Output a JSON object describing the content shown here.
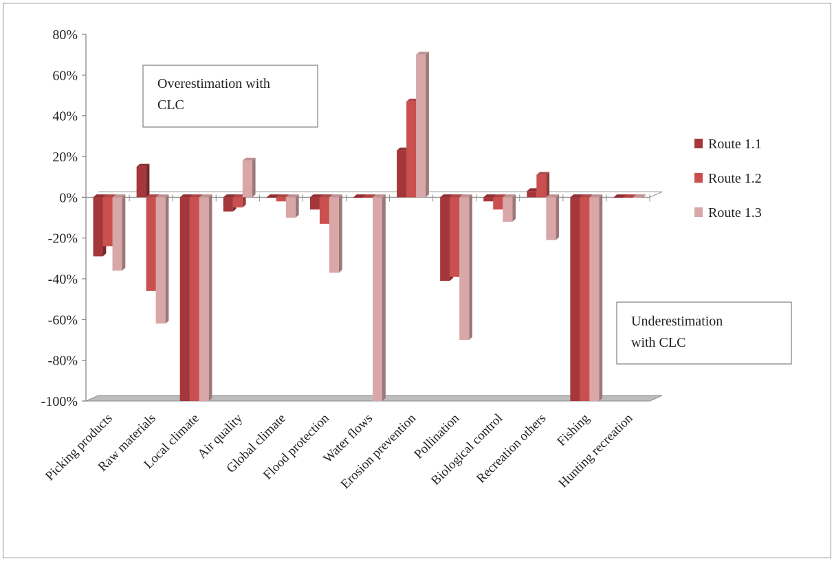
{
  "chart_data": {
    "type": "bar",
    "categories": [
      "Picking products",
      "Raw materials",
      "Local climate",
      "Air quality",
      "Global climate",
      "Flood protection",
      "Water flows",
      "Erosion prevention",
      "Pollination",
      "Biological control",
      "Recreation others",
      "Fishing",
      "Hunting recreation"
    ],
    "series": [
      {
        "name": "Route 1.1",
        "color": "#a5373b",
        "values": [
          -29,
          15,
          -100,
          -7,
          0,
          -6,
          0,
          23,
          -41,
          -2,
          3,
          -100,
          0
        ]
      },
      {
        "name": "Route 1.2",
        "color": "#c9504f",
        "values": [
          -24,
          -46,
          -100,
          -5,
          -2,
          -13,
          0,
          47,
          -39,
          -6,
          11,
          -100,
          0
        ]
      },
      {
        "name": "Route 1.3",
        "color": "#d9a7a8",
        "values": [
          -36,
          -62,
          -100,
          18,
          -10,
          -37,
          -100,
          70,
          -70,
          -12,
          -21,
          -100,
          0
        ]
      }
    ],
    "y_ticks": [
      "80%",
      "60%",
      "40%",
      "20%",
      "0%",
      "-20%",
      "-40%",
      "-60%",
      "-80%",
      "-100%"
    ],
    "ylim": [
      -100,
      80
    ],
    "legend_position": "right",
    "annotations": [
      {
        "lines": [
          "Overestimation with",
          "CLC"
        ]
      },
      {
        "lines": [
          "Underestimation",
          "with CLC"
        ]
      }
    ]
  }
}
